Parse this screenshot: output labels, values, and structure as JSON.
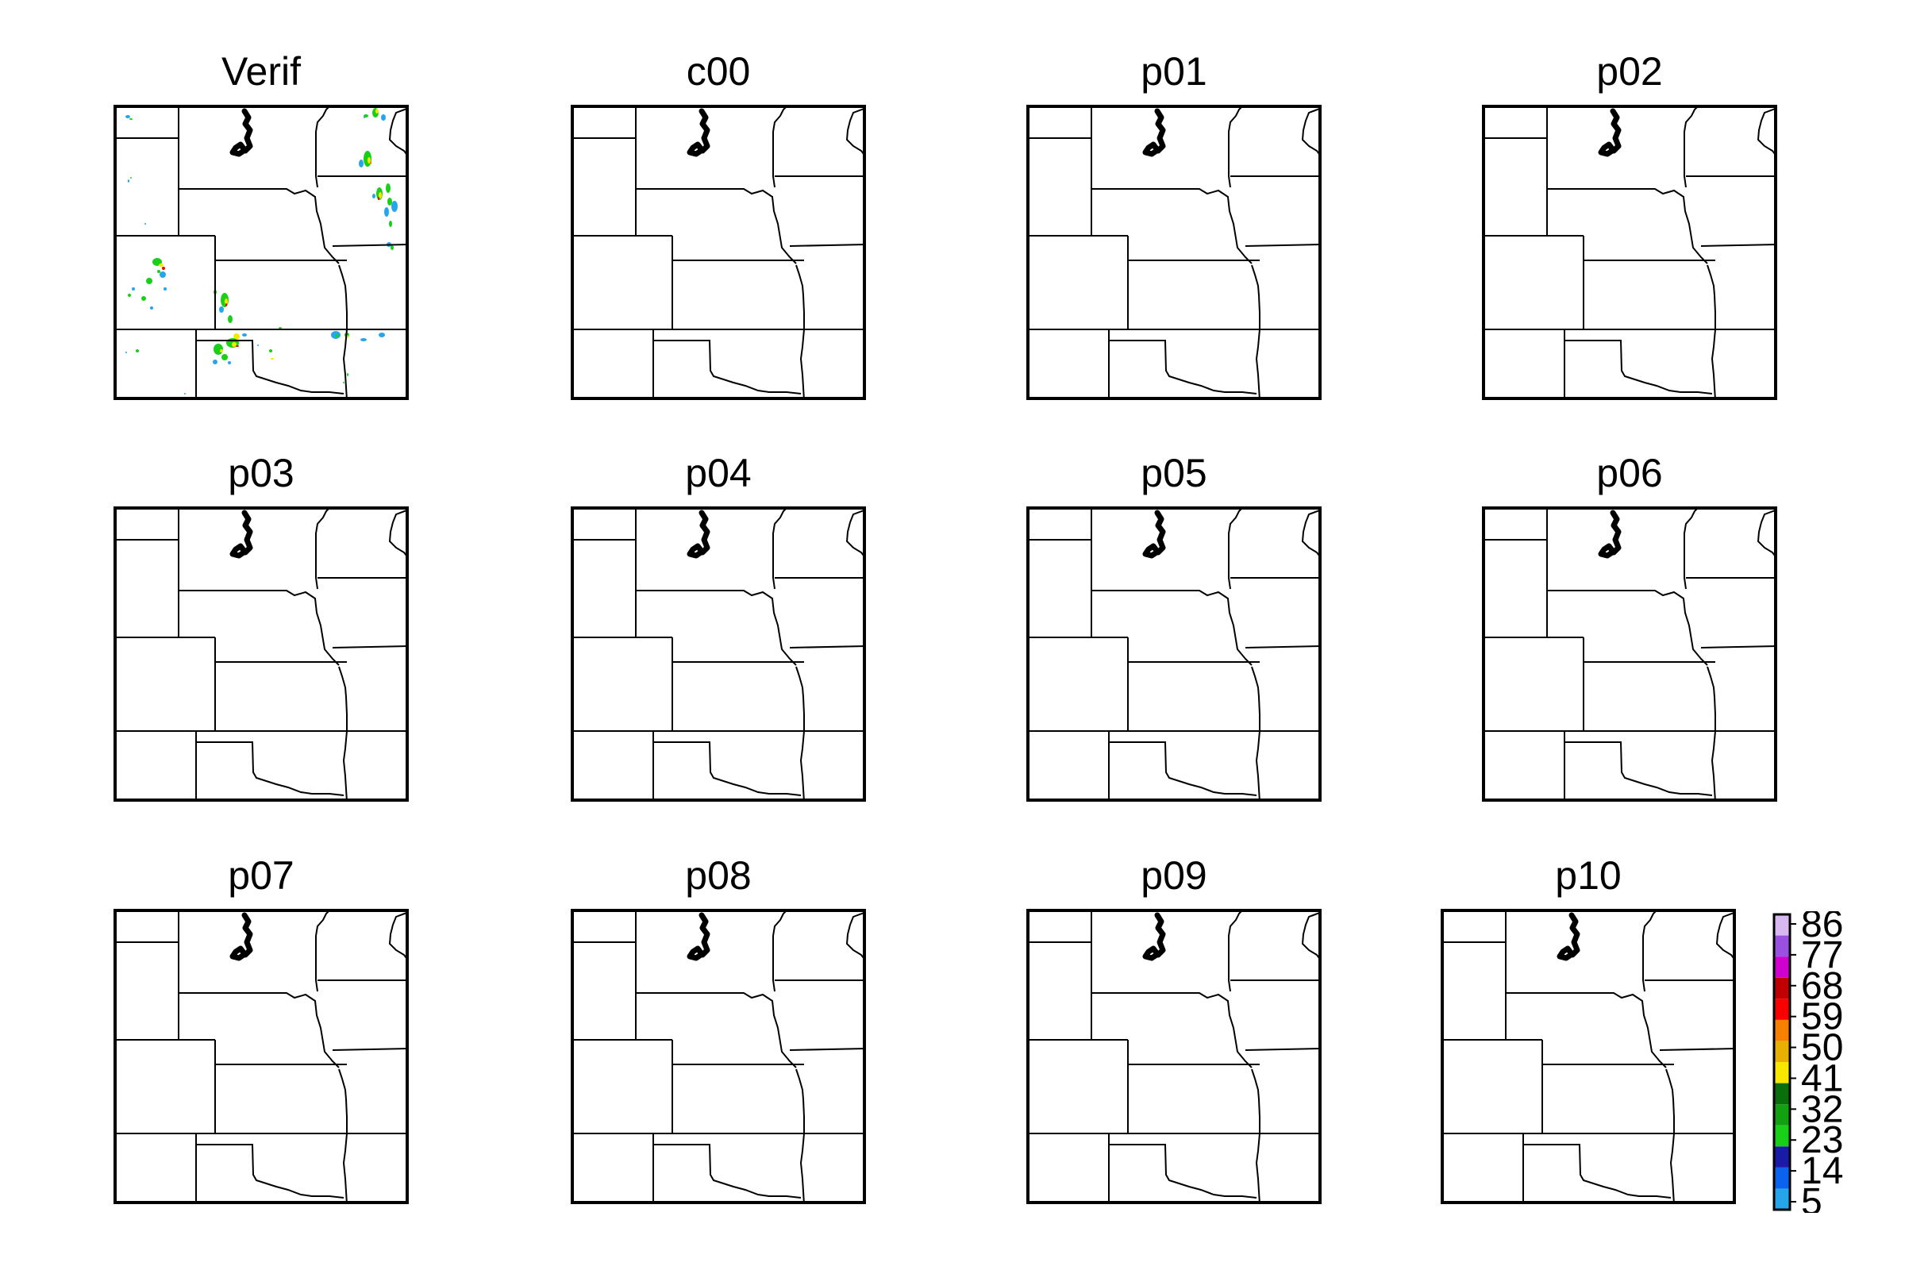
{
  "panels": [
    {
      "title": "Verif",
      "has_echoes": true
    },
    {
      "title": "c00",
      "has_echoes": false
    },
    {
      "title": "p01",
      "has_echoes": false
    },
    {
      "title": "p02",
      "has_echoes": false
    },
    {
      "title": "p03",
      "has_echoes": false
    },
    {
      "title": "p04",
      "has_echoes": false
    },
    {
      "title": "p05",
      "has_echoes": false
    },
    {
      "title": "p06",
      "has_echoes": false
    },
    {
      "title": "p07",
      "has_echoes": false
    },
    {
      "title": "p08",
      "has_echoes": false
    },
    {
      "title": "p09",
      "has_echoes": false
    },
    {
      "title": "p10",
      "has_echoes": false
    }
  ],
  "colorbar": {
    "labels": [
      "86",
      "77",
      "68",
      "59",
      "50",
      "41",
      "32",
      "23",
      "14",
      "5"
    ],
    "colors": [
      "#26a6ea",
      "#0a62f0",
      "#1a1aa8",
      "#18d018",
      "#10a010",
      "#0a6e0a",
      "#f8e800",
      "#e8b000",
      "#f88000",
      "#f80000",
      "#c00000",
      "#d000d0",
      "#9a50e0",
      "#d8b8f0"
    ]
  }
}
